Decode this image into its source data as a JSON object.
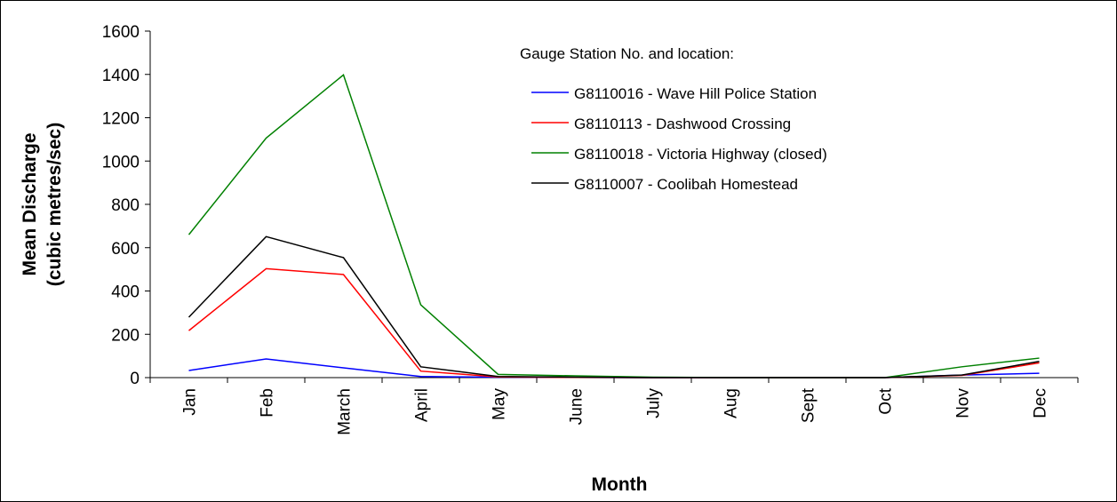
{
  "chart_data": {
    "type": "line",
    "xlabel": "Month",
    "ylabel": [
      "Mean Discharge",
      "(cubic metres/sec)"
    ],
    "legend_title": "Gauge Station No. and location:",
    "categories": [
      "Jan",
      "Feb",
      "March",
      "April",
      "May",
      "June",
      "July",
      "Aug",
      "Sept",
      "Oct",
      "Nov",
      "Dec"
    ],
    "series": [
      {
        "name": "G8110016 - Wave Hill Police Station",
        "color": "#0000ff",
        "values": [
          33,
          86,
          45,
          5,
          2,
          1,
          0,
          0,
          0,
          0,
          12,
          20
        ]
      },
      {
        "name": "G8110113 - Dashwood Crossing",
        "color": "#ff0000",
        "values": [
          217,
          503,
          476,
          30,
          3,
          1,
          0,
          0,
          0,
          0,
          10,
          68
        ]
      },
      {
        "name": "G8110018 - Victoria Highway (closed)",
        "color": "#008000",
        "values": [
          660,
          1106,
          1398,
          336,
          15,
          8,
          2,
          0,
          0,
          0,
          50,
          90
        ]
      },
      {
        "name": "G8110007 - Coolibah Homestead",
        "color": "#000000",
        "values": [
          279,
          651,
          554,
          50,
          5,
          2,
          0,
          0,
          0,
          0,
          12,
          75
        ]
      }
    ],
    "ylim": [
      0,
      1600
    ],
    "yticks": [
      0,
      200,
      400,
      600,
      800,
      1000,
      1200,
      1400,
      1600
    ],
    "grid": false,
    "legend": "top-right"
  }
}
